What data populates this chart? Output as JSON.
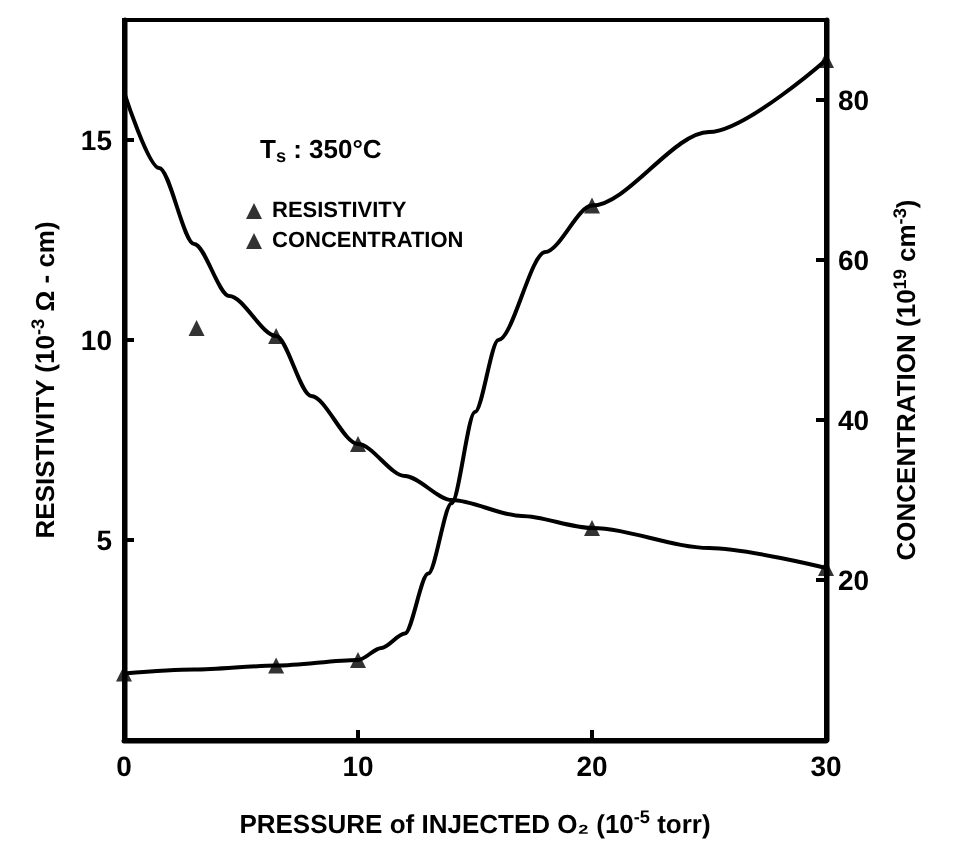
{
  "chart_data": {
    "type": "line",
    "xlabel": "PRESSURE of INJECTED O₂ (10$^{-5}$ torr)",
    "ylabel": "RESISTIVITY (10$^{-3}$ Ω - cm)",
    "y2label": "CONCENTRATION (10$^{19}$ cm$^{-3}$)",
    "annotations": [
      "T$_{s}$ : 350°C"
    ],
    "xlim": [
      0,
      30
    ],
    "xticks": [
      0,
      10,
      20,
      30
    ],
    "ylim": [
      0,
      18
    ],
    "yticks": [
      5,
      10,
      15
    ],
    "y2lim": [
      0,
      90
    ],
    "y2ticks": [
      20,
      40,
      60,
      80
    ],
    "grid": false,
    "legend": "top left",
    "line_style": "solid",
    "series": [
      {
        "marker": "none",
        "color": "#000000",
        "x": [
          0,
          1.5,
          3,
          4.5,
          6.5,
          8,
          10,
          12,
          14,
          17,
          20,
          25,
          30
        ],
        "values": [
          16.2,
          14.3,
          12.4,
          11.1,
          10.1,
          8.6,
          7.4,
          6.6,
          6.0,
          5.6,
          5.3,
          4.8,
          4.3
        ]
      },
      {
        "marker": "none",
        "color": "#000000",
        "axis": "y2",
        "x": [
          0,
          3,
          6.5,
          10,
          11,
          12,
          13,
          14,
          15,
          16,
          18,
          20,
          25,
          30
        ],
        "values": [
          8.3,
          8.8,
          9.3,
          10,
          11.5,
          13.3,
          20.8,
          29.6,
          41,
          50,
          61,
          66.8,
          76,
          85
        ]
      },
      {
        "type": "scatter",
        "name": "RESISTIVITY",
        "marker": "triangle",
        "color": "#000000",
        "x": [
          3.1,
          6.5,
          10,
          20,
          30
        ],
        "values": [
          10.3,
          10.1,
          7.4,
          5.3,
          4.3
        ]
      },
      {
        "type": "scatter",
        "name": "CONCENTRATION",
        "marker": "triangle",
        "color": "#000000",
        "axis": "y2",
        "x": [
          0,
          6.5,
          10,
          20,
          30
        ],
        "values": [
          8.3,
          9.3,
          10,
          66.8,
          85
        ]
      }
    ]
  }
}
